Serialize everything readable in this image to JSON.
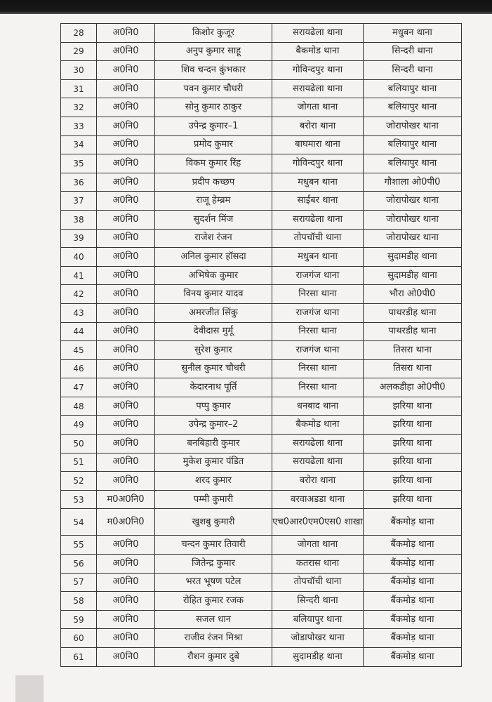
{
  "rows": [
    [
      "28",
      "अ0नि0",
      "किशोर कुजूर",
      "सरायढेला थाना",
      "मधुबन थाना"
    ],
    [
      "29",
      "अ0नि0",
      "अनुप कुमार साहू",
      "बैकमोड थाना",
      "सिन्दरी थाना"
    ],
    [
      "30",
      "अ0नि0",
      "शिव चन्दन कुंभकार",
      "गोविन्दपुर थाना",
      "सिन्दरी थाना"
    ],
    [
      "31",
      "अ0नि0",
      "पवन कुमार चौधरी",
      "सरायढेला थाना",
      "बलियापुर थाना"
    ],
    [
      "32",
      "अ0नि0",
      "सोनु कुमार ठाकुर",
      "जोगता थाना",
      "बलियापुर थाना"
    ],
    [
      "33",
      "अ0नि0",
      "उपेन्द्र कुमार–1",
      "बरोरा थाना",
      "जोरापोखर थाना"
    ],
    [
      "34",
      "अ0नि0",
      "प्रमोद कुमार",
      "बाघमारा थाना",
      "बलियापुर थाना"
    ],
    [
      "35",
      "अ0नि0",
      "विकम कुमार रिंह",
      "गोविन्दपुर थाना",
      "बलियापुर थाना"
    ],
    [
      "36",
      "अ0नि0",
      "प्रदीप कच्छप",
      "मधुबन थाना",
      "गौशाला ओ0पी0"
    ],
    [
      "37",
      "अ0नि0",
      "राजू हेम्ब्रम",
      "साईबर थाना",
      "जोरापोखर थाना"
    ],
    [
      "38",
      "अ0नि0",
      "सुदर्शन मिंज",
      "सरायढेला थाना",
      "जोरापोखर थाना"
    ],
    [
      "39",
      "अ0नि0",
      "राजेश रंजन",
      "तोपचॉची थाना",
      "जोरापोखर थाना"
    ],
    [
      "40",
      "अ0नि0",
      "अनिल कुमार हॉसदा",
      "मधुबन थाना",
      "सुदामडीह थाना"
    ],
    [
      "41",
      "अ0नि0",
      "अभिषेक कुमार",
      "राजगंज थाना",
      "सुदामडीह थाना"
    ],
    [
      "42",
      "अ0नि0",
      "विनय कुमार यादव",
      "निरसा थाना",
      "भौरा ओ0पी0"
    ],
    [
      "43",
      "अ0नि0",
      "अमरजीत सिंकु",
      "राजगंज थाना",
      "पाथरडीह थाना"
    ],
    [
      "44",
      "अ0नि0",
      "देवीदास मुर्मू",
      "निरसा थाना",
      "पाथरडीह थाना"
    ],
    [
      "45",
      "अ0नि0",
      "सुरेश कुमार",
      "राजगंज थाना",
      "तिसरा थाना"
    ],
    [
      "46",
      "अ0नि0",
      "सुनील कुमार चौधरी",
      "निरसा थाना",
      "तिसरा थाना"
    ],
    [
      "47",
      "अ0नि0",
      "केदारनाथ पूर्ति",
      "निरसा थाना",
      "अलकडीहा ओ0पी0"
    ],
    [
      "48",
      "अ0नि0",
      "पप्पु कुमार",
      "धनबाद थाना",
      "झरिया थाना"
    ],
    [
      "49",
      "अ0नि0",
      "उपेन्द्र कुमार–2",
      "बैकमोड थाना",
      "झरिया थाना"
    ],
    [
      "50",
      "अ0नि0",
      "बनबिहारी कुमार",
      "सरायढेला थाना",
      "झरिया थाना"
    ],
    [
      "51",
      "अ0नि0",
      "मुकेश कुमार पंडित",
      "सरायढेला थाना",
      "झरिया थाना"
    ],
    [
      "52",
      "अ0नि0",
      "शरद कुमार",
      "बरोरा थाना",
      "झरिया थाना"
    ],
    [
      "53",
      "म0अ0नि0",
      "पम्मी कुमारी",
      "बरवाअडडा थाना",
      "झरिया थाना"
    ],
    [
      "54",
      "म0अ0नि0",
      "खुशबु कुमारी",
      "एच0आर0एम0एस0 शाखा",
      "बैंकमोड़ थाना"
    ],
    [
      "55",
      "अ0नि0",
      "चन्दन कुमार तिवारी",
      "जोगता थाना",
      "बैंकमोड़ थाना"
    ],
    [
      "56",
      "अ0नि0",
      "जितेन्द्र कुमार",
      "कतरास थाना",
      "बैंकमोड़ थाना"
    ],
    [
      "57",
      "अ0नि0",
      "भरत भूषण पटेल",
      "तोपचॉची थाना",
      "बैंकमोड़ थाना"
    ],
    [
      "58",
      "अ0नि0",
      "रोहित कुमार रजक",
      "सिन्दरी थाना",
      "बैंकमोड़ थाना"
    ],
    [
      "59",
      "अ0नि0",
      "सजल धान",
      "बलियापुर थाना",
      "बैंकमोड़ थाना"
    ],
    [
      "60",
      "अ0नि0",
      "राजीव रंजन मिश्रा",
      "जोडापोखर थाना",
      "बैंकमोड़ थाना"
    ],
    [
      "61",
      "अ0नि0",
      "रौशन कुमार दुबे",
      "सुदामडीह थाना",
      "बैंकमोड़ थाना"
    ]
  ]
}
